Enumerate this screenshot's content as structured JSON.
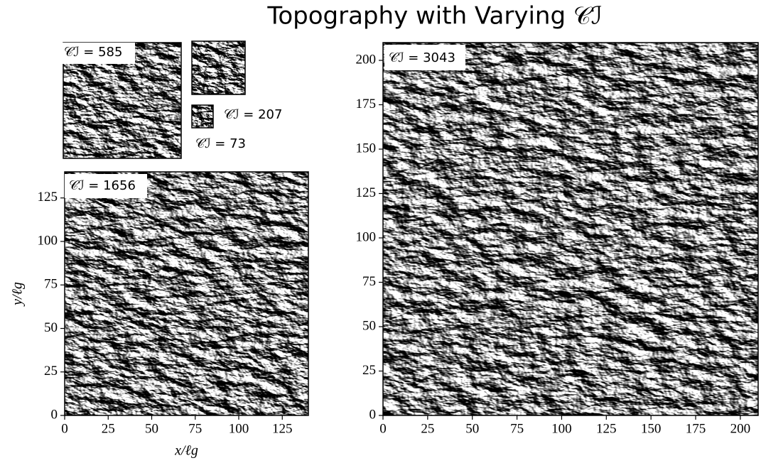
{
  "title": "Topography with Varying 𝒞ℐ",
  "chart_data": [
    {
      "type": "image",
      "label": "𝒞ℐ = 1656",
      "xlim": [
        0,
        140
      ],
      "ylim": [
        0,
        140
      ],
      "xticks": [
        0,
        25,
        50,
        75,
        100,
        125
      ],
      "yticks": [
        0,
        25,
        50,
        75,
        100,
        125
      ],
      "xlabel": "x/ℓg",
      "ylabel": "y/ℓg"
    },
    {
      "type": "image",
      "label": "𝒞ℐ = 3043",
      "xlim": [
        0,
        210
      ],
      "ylim": [
        0,
        210
      ],
      "xticks": [
        0,
        25,
        50,
        75,
        100,
        125,
        150,
        175,
        200
      ],
      "yticks": [
        0,
        25,
        50,
        75,
        100,
        125,
        150,
        175,
        200
      ]
    },
    {
      "type": "image",
      "label": "𝒞ℐ = 585"
    },
    {
      "type": "image",
      "label": "𝒞ℐ = 207"
    },
    {
      "type": "image",
      "label": "𝒞ℐ = 73"
    }
  ]
}
